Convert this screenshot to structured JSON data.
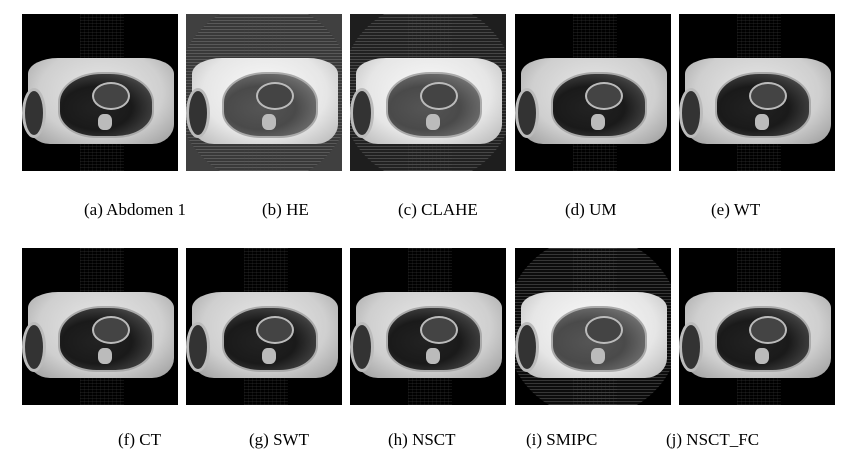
{
  "figure": {
    "panels": [
      {
        "caption": "(a) Abdomen 1",
        "background": "#000000"
      },
      {
        "caption": "(b) HE",
        "background": "#404040"
      },
      {
        "caption": "(c) CLAHE",
        "background": "#1e1e1e"
      },
      {
        "caption": "(d) UM",
        "background": "#000000"
      },
      {
        "caption": "(e) WT",
        "background": "#000000"
      },
      {
        "caption": "(f) CT",
        "background": "#000000"
      },
      {
        "caption": "(g) SWT",
        "background": "#000000"
      },
      {
        "caption": "(h) NSCT",
        "background": "#000000"
      },
      {
        "caption": "(i) SMIPC",
        "background": "#000000"
      },
      {
        "caption": "(j) NSCT_FC",
        "background": "#000000"
      }
    ]
  }
}
